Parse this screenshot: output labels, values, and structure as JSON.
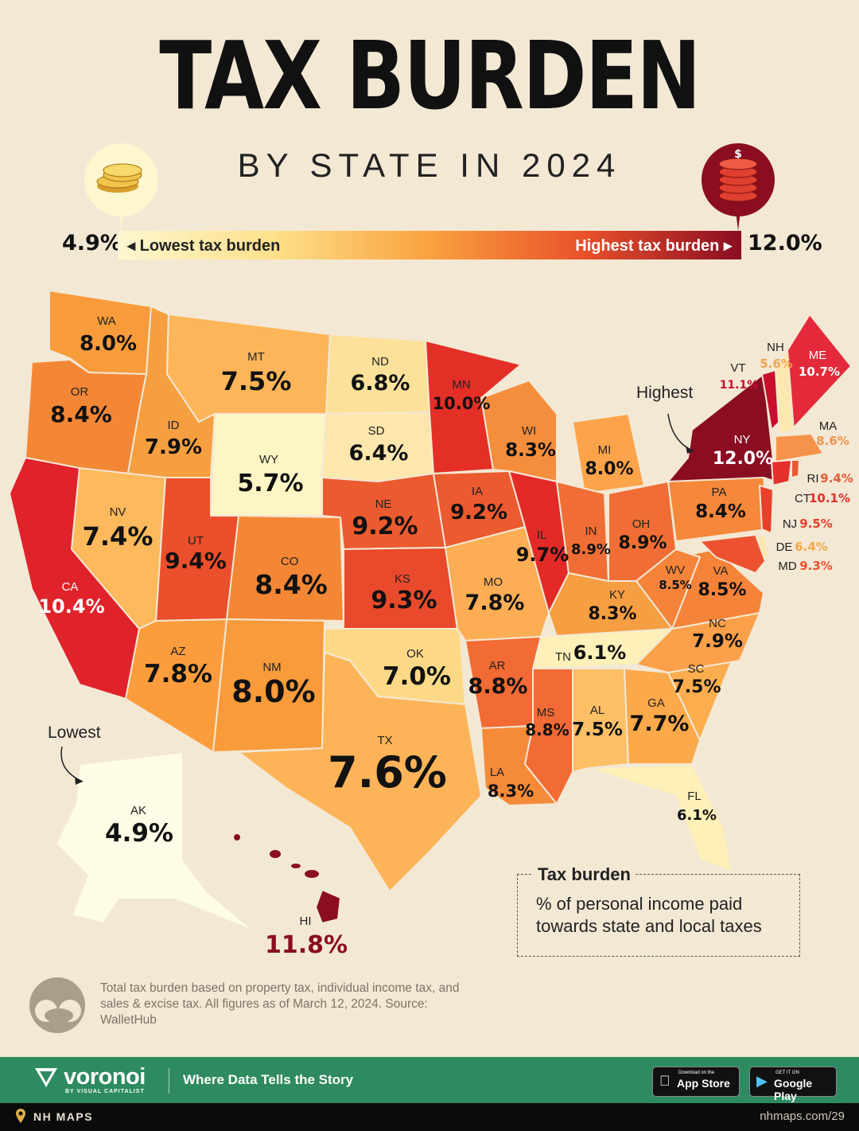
{
  "title": "TAX BURDEN",
  "subtitle": "BY STATE IN 2024",
  "legend_scale": {
    "min_value": "4.9%",
    "max_value": "12.0%",
    "low_label": "Lowest tax burden",
    "high_label": "Highest tax burden",
    "low_color": "#fdf7d0",
    "high_color": "#8a0d22",
    "low_icon": "gold-coins-icon",
    "high_icon": "red-coins-icon"
  },
  "annotations": {
    "highest": "Highest",
    "lowest": "Lowest"
  },
  "states": {
    "WA": {
      "abbr": "WA",
      "value": "8.0%"
    },
    "OR": {
      "abbr": "OR",
      "value": "8.4%"
    },
    "CA": {
      "abbr": "CA",
      "value": "10.4%"
    },
    "ID": {
      "abbr": "ID",
      "value": "7.9%"
    },
    "NV": {
      "abbr": "NV",
      "value": "7.4%"
    },
    "MT": {
      "abbr": "MT",
      "value": "7.5%"
    },
    "WY": {
      "abbr": "WY",
      "value": "5.7%"
    },
    "UT": {
      "abbr": "UT",
      "value": "9.4%"
    },
    "AZ": {
      "abbr": "AZ",
      "value": "7.8%"
    },
    "CO": {
      "abbr": "CO",
      "value": "8.4%"
    },
    "NM": {
      "abbr": "NM",
      "value": "8.0%"
    },
    "ND": {
      "abbr": "ND",
      "value": "6.8%"
    },
    "SD": {
      "abbr": "SD",
      "value": "6.4%"
    },
    "NE": {
      "abbr": "NE",
      "value": "9.2%"
    },
    "KS": {
      "abbr": "KS",
      "value": "9.3%"
    },
    "OK": {
      "abbr": "OK",
      "value": "7.0%"
    },
    "TX": {
      "abbr": "TX",
      "value": "7.6%"
    },
    "MN": {
      "abbr": "MN",
      "value": "10.0%"
    },
    "IA": {
      "abbr": "IA",
      "value": "9.2%"
    },
    "MO": {
      "abbr": "MO",
      "value": "7.8%"
    },
    "AR": {
      "abbr": "AR",
      "value": "8.8%"
    },
    "LA": {
      "abbr": "LA",
      "value": "8.3%"
    },
    "WI": {
      "abbr": "WI",
      "value": "8.3%"
    },
    "IL": {
      "abbr": "IL",
      "value": "9.7%"
    },
    "MI": {
      "abbr": "MI",
      "value": "8.0%"
    },
    "IN": {
      "abbr": "IN",
      "value": "8.9%"
    },
    "OH": {
      "abbr": "OH",
      "value": "8.9%"
    },
    "KY": {
      "abbr": "KY",
      "value": "8.3%"
    },
    "TN": {
      "abbr": "TN",
      "value": "6.1%"
    },
    "MS": {
      "abbr": "MS",
      "value": "8.8%"
    },
    "AL": {
      "abbr": "AL",
      "value": "7.5%"
    },
    "GA": {
      "abbr": "GA",
      "value": "7.7%"
    },
    "FL": {
      "abbr": "FL",
      "value": "6.1%"
    },
    "SC": {
      "abbr": "SC",
      "value": "7.5%"
    },
    "NC": {
      "abbr": "NC",
      "value": "7.9%"
    },
    "VA": {
      "abbr": "VA",
      "value": "8.5%"
    },
    "WV": {
      "abbr": "WV",
      "value": "8.5%"
    },
    "PA": {
      "abbr": "PA",
      "value": "8.4%"
    },
    "NY": {
      "abbr": "NY",
      "value": "12.0%"
    },
    "VT": {
      "abbr": "VT",
      "value": "11.1%"
    },
    "NH": {
      "abbr": "NH",
      "value": "5.6%"
    },
    "ME": {
      "abbr": "ME",
      "value": "10.7%"
    },
    "MA": {
      "abbr": "MA",
      "value": "8.6%"
    },
    "RI": {
      "abbr": "RI",
      "value": "9.4%"
    },
    "CT": {
      "abbr": "CT",
      "value": "10.1%"
    },
    "NJ": {
      "abbr": "NJ",
      "value": "9.5%"
    },
    "DE": {
      "abbr": "DE",
      "value": "6.4%"
    },
    "MD": {
      "abbr": "MD",
      "value": "9.3%"
    },
    "AK": {
      "abbr": "AK",
      "value": "4.9%"
    },
    "HI": {
      "abbr": "HI",
      "value": "11.8%"
    }
  },
  "legend": {
    "title": "Tax burden",
    "text": "% of personal income paid towards state and local taxes"
  },
  "footnote": "Total tax burden based on property tax, individual income tax, and sales & excise tax. All figures as of March 12, 2024. Source: WalletHub",
  "footer": {
    "brand": "voronoi",
    "brand_sub": "BY VISUAL CAPITALIST",
    "tagline": "Where Data Tells the Story",
    "app_store_small": "Download on the",
    "app_store": "App Store",
    "google_play_small": "GET IT ON",
    "google_play": "Google Play"
  },
  "bottom_bar": {
    "label": "NH MAPS",
    "url": "nhmaps.com/29"
  }
}
